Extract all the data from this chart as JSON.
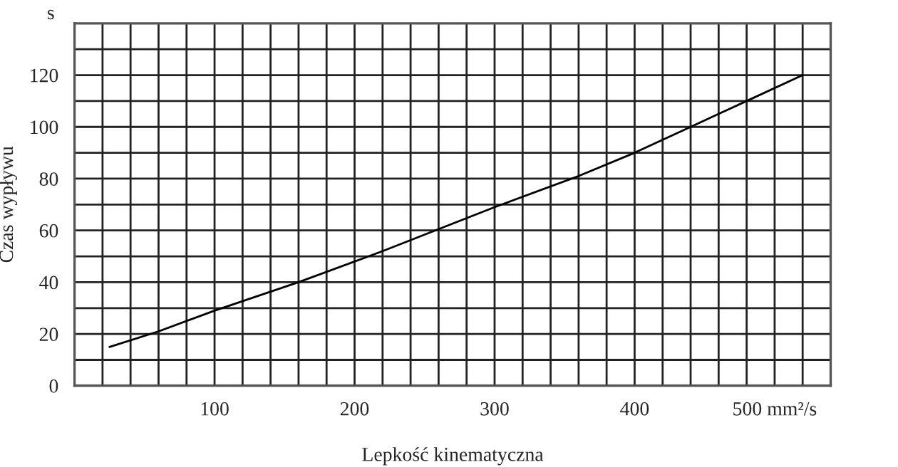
{
  "chart_data": {
    "type": "line",
    "xlabel": "Lepkość kinematyczna",
    "ylabel": "Czas wypływu",
    "annotations": [
      "s"
    ],
    "x": [
      25,
      60,
      100,
      160,
      220,
      300,
      360,
      400,
      440,
      480,
      520
    ],
    "series": [
      {
        "color": "#000000",
        "values": [
          15,
          21,
          29,
          40,
          52,
          69,
          81,
          90,
          100,
          110,
          120
        ]
      }
    ],
    "xlim": [
      0,
      540
    ],
    "xticks": [
      {
        "value": 20,
        "label": null
      },
      {
        "value": 40,
        "label": null
      },
      {
        "value": 60,
        "label": null
      },
      {
        "value": 80,
        "label": null
      },
      100,
      {
        "value": 120,
        "label": null
      },
      {
        "value": 140,
        "label": null
      },
      {
        "value": 160,
        "label": null
      },
      {
        "value": 180,
        "label": null
      },
      200,
      {
        "value": 220,
        "label": null
      },
      {
        "value": 240,
        "label": null
      },
      {
        "value": 260,
        "label": null
      },
      {
        "value": 280,
        "label": null
      },
      300,
      {
        "value": 320,
        "label": null
      },
      {
        "value": 340,
        "label": null
      },
      {
        "value": 360,
        "label": null
      },
      {
        "value": 380,
        "label": null
      },
      400,
      {
        "value": 420,
        "label": null
      },
      {
        "value": 440,
        "label": null
      },
      {
        "value": 460,
        "label": null
      },
      {
        "value": 480,
        "label": null
      },
      {
        "value": 500,
        "label": "500 mm²/s"
      },
      {
        "value": 520,
        "label": null
      }
    ],
    "ylim": [
      0,
      140
    ],
    "yticks": [
      0,
      {
        "value": 10,
        "label": null
      },
      20,
      {
        "value": 30,
        "label": null
      },
      40,
      {
        "value": 50,
        "label": null
      },
      60,
      {
        "value": 70,
        "label": null
      },
      80,
      {
        "value": 90,
        "label": null
      },
      100,
      {
        "value": 110,
        "label": null
      },
      120,
      {
        "value": 130,
        "label": null
      }
    ],
    "grid": true,
    "marker": "none",
    "line_style": "solid"
  }
}
